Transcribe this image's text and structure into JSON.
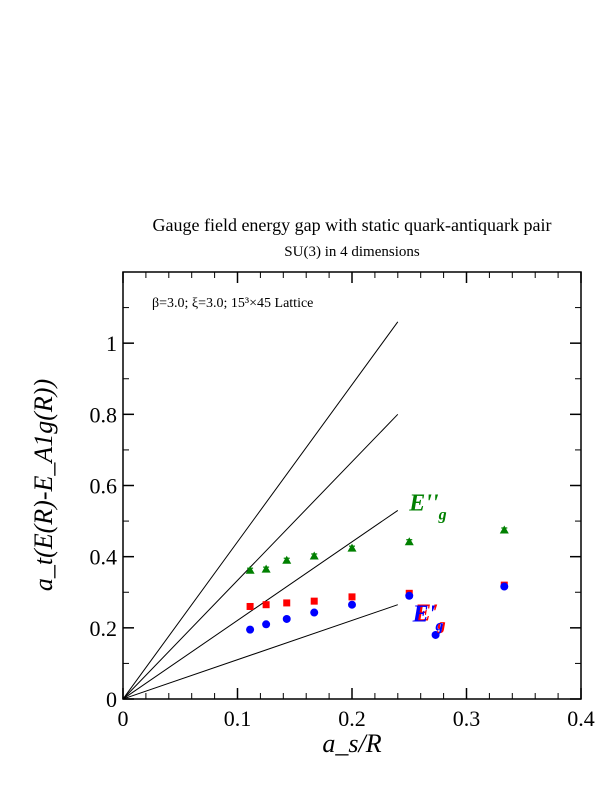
{
  "chart_data": {
    "type": "scatter",
    "title": "Gauge field energy gap with static quark-antiquark pair",
    "subtitle": "SU(3) in 4 dimensions",
    "annotation": "β=3.0; ξ=3.0; 15³×45 Lattice",
    "xlabel": "a_s/R",
    "ylabel": "a_t(E(R)-E_A1g(R))",
    "xlim": [
      0,
      0.4
    ],
    "ylim": [
      0,
      1.2
    ],
    "x_ticks": [
      "0",
      "0.1",
      "0.2",
      "0.3",
      "0.4"
    ],
    "y_ticks": [
      "0",
      "0.2",
      "0.4",
      "0.6",
      "0.8",
      "1"
    ],
    "series": [
      {
        "name": "E_g''",
        "color": "#008000",
        "marker": "triangle",
        "points": [
          {
            "x": 0.111,
            "y": 0.362
          },
          {
            "x": 0.125,
            "y": 0.365
          },
          {
            "x": 0.143,
            "y": 0.39
          },
          {
            "x": 0.167,
            "y": 0.402
          },
          {
            "x": 0.2,
            "y": 0.424
          },
          {
            "x": 0.25,
            "y": 0.442
          },
          {
            "x": 0.333,
            "y": 0.475
          }
        ]
      },
      {
        "name": "E_g'",
        "color": "#ff0000",
        "marker": "square",
        "points": [
          {
            "x": 0.111,
            "y": 0.26
          },
          {
            "x": 0.125,
            "y": 0.265
          },
          {
            "x": 0.143,
            "y": 0.27
          },
          {
            "x": 0.167,
            "y": 0.275
          },
          {
            "x": 0.2,
            "y": 0.287
          },
          {
            "x": 0.25,
            "y": 0.297
          },
          {
            "x": 0.333,
            "y": 0.32
          }
        ]
      },
      {
        "color": "#0000ff",
        "marker": "circle",
        "points": [
          {
            "x": 0.111,
            "y": 0.195
          },
          {
            "x": 0.125,
            "y": 0.21
          },
          {
            "x": 0.143,
            "y": 0.225
          },
          {
            "x": 0.167,
            "y": 0.243
          },
          {
            "x": 0.2,
            "y": 0.265
          },
          {
            "x": 0.25,
            "y": 0.29
          },
          {
            "x": 0.273,
            "y": 0.18
          },
          {
            "x": 0.333,
            "y": 0.316
          }
        ]
      }
    ],
    "reference_lines": [
      {
        "x0": 0,
        "y0": 0,
        "x1": 0.24,
        "y1": 1.06
      },
      {
        "x0": 0,
        "y0": 0,
        "x1": 0.24,
        "y1": 0.8
      },
      {
        "x0": 0,
        "y0": 0,
        "x1": 0.24,
        "y1": 0.53
      },
      {
        "x0": 0,
        "y0": 0,
        "x1": 0.24,
        "y1": 0.265
      }
    ],
    "labels": [
      {
        "text": "E''",
        "sub": "g",
        "color": "#008000",
        "x": 0.25,
        "y": 0.53
      },
      {
        "text": "E'",
        "sub": "g",
        "color": "#ff0000",
        "x": 0.255,
        "y": 0.22
      },
      {
        "text": "E'",
        "sub": "g",
        "color": "#0000ff",
        "x": 0.253,
        "y": 0.218
      }
    ],
    "grid": false,
    "legend": "none"
  }
}
